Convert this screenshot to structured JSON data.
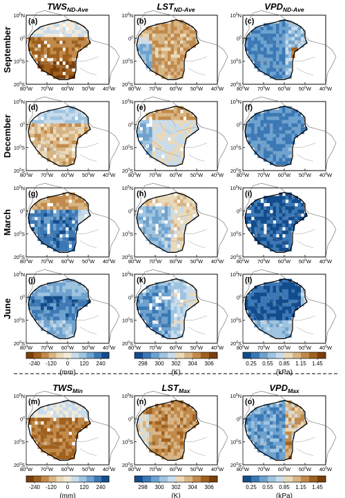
{
  "chart_data": {
    "type": "heatmap",
    "column_titles": [
      {
        "base": "TWS",
        "sub": "ND-Ave"
      },
      {
        "base": "LST",
        "sub": "ND-Ave"
      },
      {
        "base": "VPD",
        "sub": "ND-Ave"
      }
    ],
    "bottom_titles": [
      {
        "base": "TWS",
        "sub": "Min"
      },
      {
        "base": "LST",
        "sub": "Max"
      },
      {
        "base": "VPD",
        "sub": "Max"
      }
    ],
    "row_labels": [
      "September",
      "December",
      "March",
      "June"
    ],
    "panel_letters": [
      "(a)",
      "(b)",
      "(c)",
      "(d)",
      "(e)",
      "(f)",
      "(g)",
      "(h)",
      "(i)",
      "(j)",
      "(k)",
      "(l)",
      "(m)",
      "(n)",
      "(o)"
    ],
    "lat_ticks": [
      {
        "num": "10",
        "deg": "0",
        "hem": "N"
      },
      {
        "num": "0",
        "deg": "0",
        "hem": ""
      },
      {
        "num": "10",
        "deg": "0",
        "hem": "S"
      },
      {
        "num": "20",
        "deg": "0",
        "hem": "S"
      }
    ],
    "lon_ticks": [
      {
        "num": "80",
        "deg": "0",
        "hem": "W"
      },
      {
        "num": "70",
        "deg": "0",
        "hem": "W"
      },
      {
        "num": "60",
        "deg": "0",
        "hem": "W"
      },
      {
        "num": "50",
        "deg": "0",
        "hem": "W"
      },
      {
        "num": "40",
        "deg": "0",
        "hem": "W"
      }
    ],
    "colorbars": [
      {
        "variable": "TWS",
        "ticks": [
          "-240",
          "-120",
          "0",
          "120",
          "240"
        ],
        "unit": "(mm)",
        "range": [
          -300,
          300
        ]
      },
      {
        "variable": "LST",
        "ticks": [
          "298",
          "300",
          "302",
          "304",
          "306"
        ],
        "unit": "(K)",
        "range": [
          297,
          307
        ]
      },
      {
        "variable": "VPD",
        "ticks": [
          "0.25",
          "0.55",
          "0.85",
          "1.15",
          "1.45"
        ],
        "unit": "(kPa)",
        "range": [
          0.1,
          1.6
        ]
      }
    ],
    "colors": {
      "TWS": [
        "#7a3f0a",
        "#a0601e",
        "#c28a4a",
        "#d8b585",
        "#ead9b8",
        "#f2ead8",
        "#c9dcec",
        "#9ec4e0",
        "#6ea2cf",
        "#3b78b5",
        "#134c8c"
      ],
      "LST": [
        "#134c8c",
        "#3b78b5",
        "#6ea2cf",
        "#9ec4e0",
        "#c9dcec",
        "#ead9b8",
        "#d8b585",
        "#c28a4a",
        "#a0601e",
        "#7a3f0a"
      ],
      "VPD": [
        "#134c8c",
        "#3b78b5",
        "#6ea2cf",
        "#9ec4e0",
        "#c9dcec",
        "#ead9b8",
        "#d8b585",
        "#c28a4a",
        "#a0601e",
        "#7a3f0a"
      ]
    },
    "x_range_degW": [
      80,
      40
    ],
    "y_range_deg": [
      10,
      -20
    ],
    "note_values": "panel fields are approximate seasonal patterns (colour class index 0..N)"
  }
}
